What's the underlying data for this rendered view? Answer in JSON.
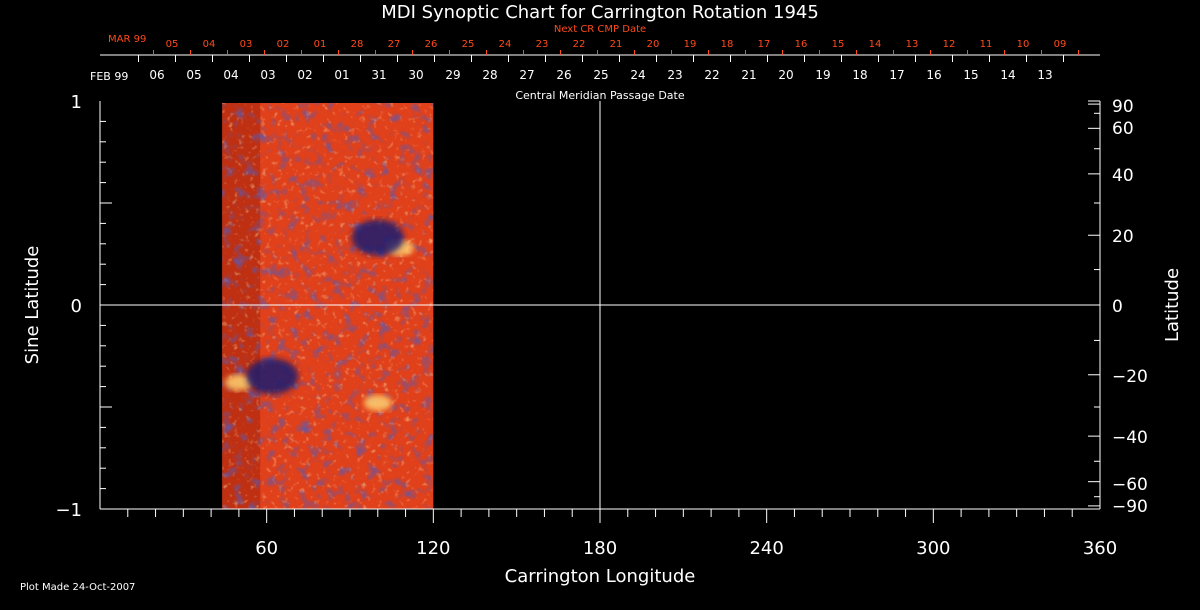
{
  "colors": {
    "background": "#000000",
    "axis": "#ffffff",
    "next_cr": "#ff4a1a",
    "map_base": "#e0401a",
    "map_bright": "#ffd070",
    "map_dark": "#1a1a70"
  },
  "footer": {
    "plot_made": "Plot Made 24-Oct-2007"
  },
  "chart_data": {
    "type": "heatmap",
    "title": "MDI Synoptic Chart for Carrington Rotation 1945",
    "xlabel": "Carrington Longitude",
    "ylabel_left": "Sine Latitude",
    "ylabel_right": "Latitude",
    "xlim": [
      0,
      360
    ],
    "ylim": [
      -1,
      1
    ],
    "x_ticks": [
      "60",
      "120",
      "180",
      "240",
      "300",
      "360"
    ],
    "y_ticks_left": [
      {
        "value": 1,
        "label": "1"
      },
      {
        "value": 0,
        "label": "0"
      },
      {
        "value": -1,
        "label": "−1"
      }
    ],
    "y_ticks_right": [
      {
        "deg": 90,
        "label": "90"
      },
      {
        "deg": 60,
        "label": "60"
      },
      {
        "deg": 40,
        "label": "40"
      },
      {
        "deg": 20,
        "label": "20"
      },
      {
        "deg": 0,
        "label": "0"
      },
      {
        "deg": -20,
        "label": "−20"
      },
      {
        "deg": -40,
        "label": "−40"
      },
      {
        "deg": -60,
        "label": "−60"
      },
      {
        "deg": -90,
        "label": "−90"
      }
    ],
    "crosshair": {
      "longitude": 180,
      "sine_latitude": 0
    },
    "data_coverage": {
      "longitude_start": 44,
      "longitude_end": 120
    },
    "features": [
      {
        "kind": "bright",
        "longitude": 108,
        "sine_latitude": 0.28
      },
      {
        "kind": "bright",
        "longitude": 50,
        "sine_latitude": -0.38
      },
      {
        "kind": "bright",
        "longitude": 100,
        "sine_latitude": -0.48
      },
      {
        "kind": "dark",
        "longitude": 100,
        "sine_latitude": 0.33
      },
      {
        "kind": "dark",
        "longitude": 62,
        "sine_latitude": -0.35
      }
    ],
    "cmp_axis": {
      "label": "Central Meridian Passage Date",
      "month_label": "FEB 99",
      "dates": [
        "06",
        "05",
        "04",
        "03",
        "02",
        "01",
        "31",
        "30",
        "29",
        "28",
        "27",
        "26",
        "25",
        "24",
        "23",
        "22",
        "21",
        "20",
        "19",
        "18",
        "17",
        "16",
        "15",
        "14",
        "13"
      ]
    },
    "next_cr_axis": {
      "label": "Next CR CMP Date",
      "month_label": "MAR 99",
      "dates": [
        "05",
        "04",
        "03",
        "02",
        "01",
        "28",
        "27",
        "26",
        "25",
        "24",
        "23",
        "22",
        "21",
        "20",
        "19",
        "18",
        "17",
        "16",
        "15",
        "14",
        "13",
        "12",
        "11",
        "10",
        "09"
      ]
    }
  }
}
